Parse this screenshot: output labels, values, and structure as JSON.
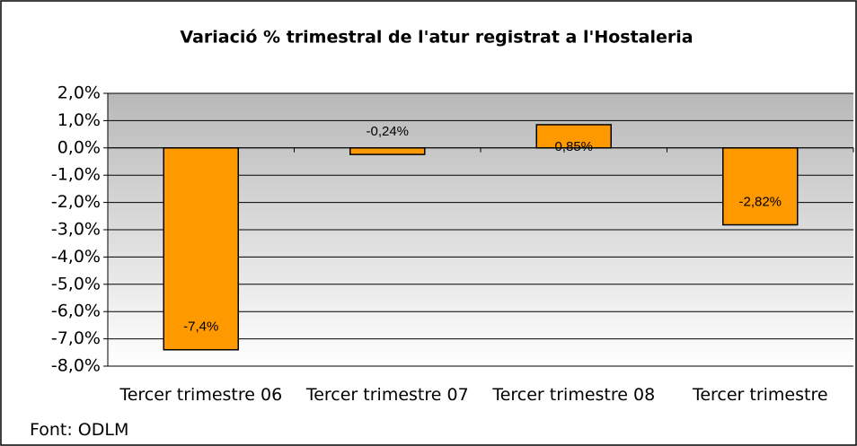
{
  "chart_data": {
    "type": "bar",
    "title": "Variació % trimestral de l'atur registrat a l'Hostaleria",
    "categories": [
      "Tercer trimestre 06",
      "Tercer trimestre 07",
      "Tercer trimestre 08",
      "Tercer trimestre"
    ],
    "values": [
      -7.4,
      -0.24,
      0.85,
      -2.82
    ],
    "value_labels": [
      "-7,4%",
      "-0,24%",
      "0,85%",
      "-2,82%"
    ],
    "color": "#ff9900",
    "ylim": [
      -8,
      2
    ],
    "yticks": [
      {
        "value": 2,
        "label": "2,0%"
      },
      {
        "value": 1,
        "label": "1,0%"
      },
      {
        "value": 0,
        "label": "0,0%"
      },
      {
        "value": -1,
        "label": "-1,0%"
      },
      {
        "value": -2,
        "label": "-2,0%"
      },
      {
        "value": -3,
        "label": "-3,0%"
      },
      {
        "value": -4,
        "label": "-4,0%"
      },
      {
        "value": -5,
        "label": "-5,0%"
      },
      {
        "value": -6,
        "label": "-6,0%"
      },
      {
        "value": -7,
        "label": "-7,0%"
      },
      {
        "value": -8,
        "label": "-8,0%"
      }
    ],
    "grid": true,
    "source": "Font: ODLM"
  }
}
